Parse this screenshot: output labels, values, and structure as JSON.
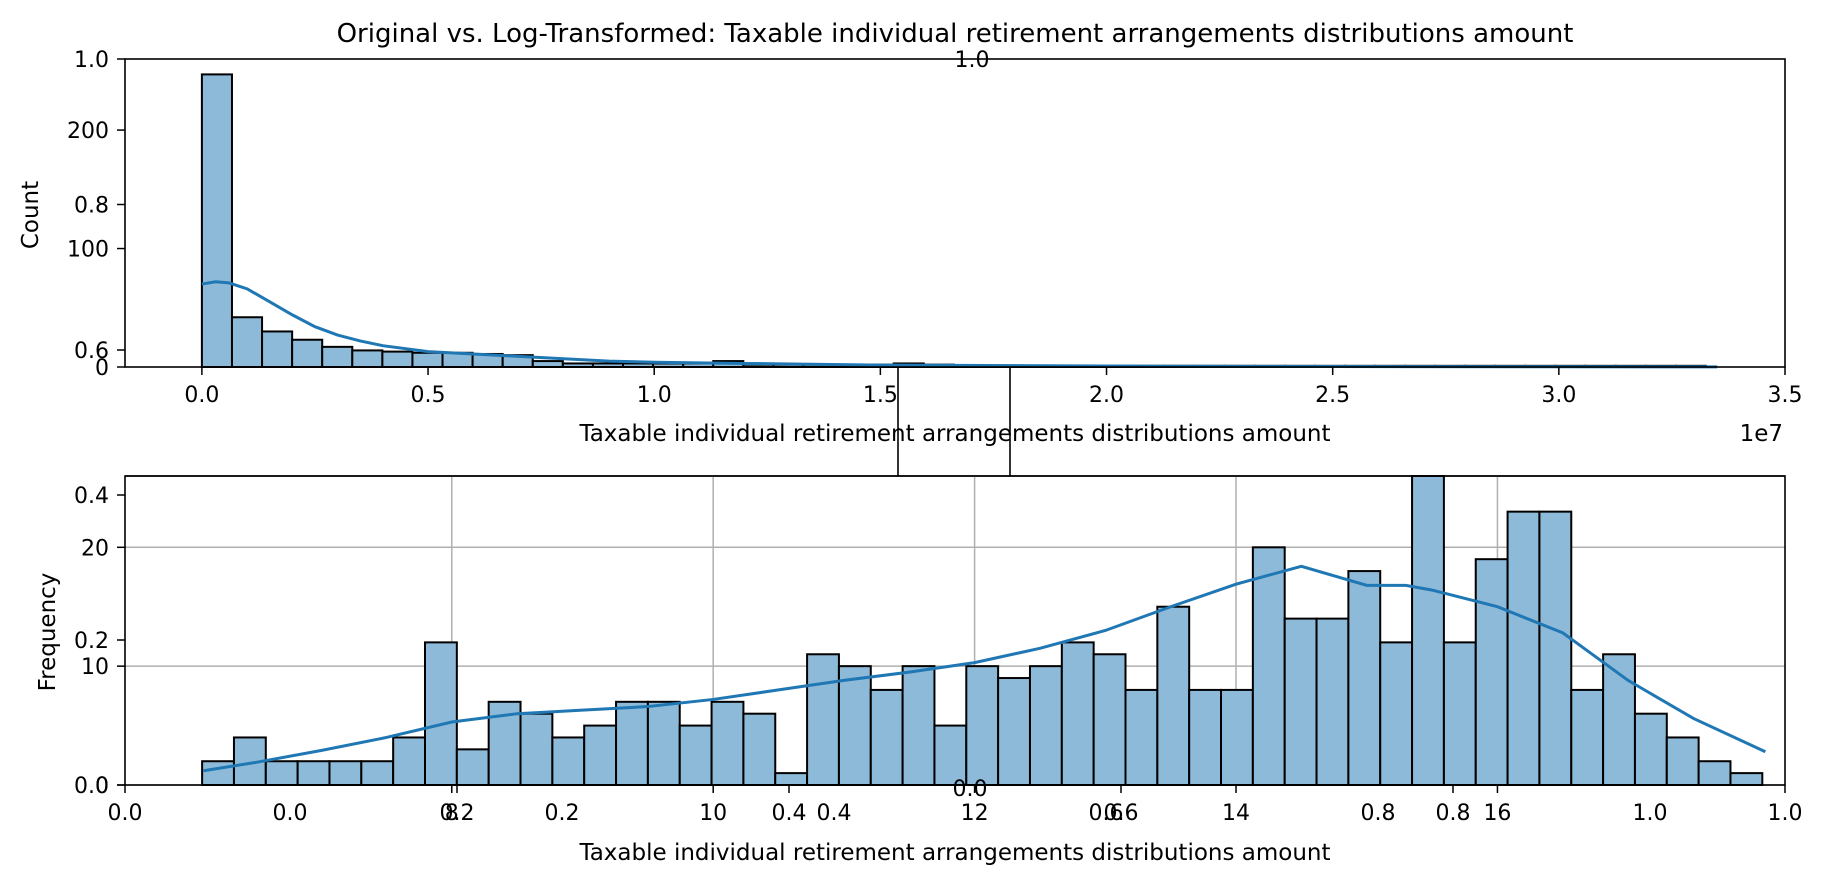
{
  "figure": {
    "title": "Original vs. Log-Transformed: Taxable individual retirement arrangements distributions amount"
  },
  "chart_data": [
    {
      "type": "bar",
      "subtype": "histogram with kde",
      "panel": "top",
      "xlabel": "Taxable individual retirement arrangements distributions amount",
      "ylabel": "Count",
      "x_offset_label": "1e7",
      "xlim": [
        -0.17,
        3.5
      ],
      "ylim": [
        0,
        260
      ],
      "xticks": [
        0.0,
        0.5,
        1.0,
        1.5,
        2.0,
        2.5,
        3.0,
        3.5
      ],
      "xtick_labels": [
        "0.0",
        "0.5",
        "1.0",
        "1.5",
        "2.0",
        "2.5",
        "3.0",
        "3.5"
      ],
      "yticks": [
        0,
        100,
        200
      ],
      "ytick_labels": [
        "0",
        "100",
        "200"
      ],
      "stray_axis": {
        "yticks": [
          0.6,
          0.8,
          1.0
        ],
        "ytick_labels": [
          "0.6",
          "0.8",
          "1.0"
        ],
        "top_label": "1.0"
      },
      "bin_start": 0.0,
      "bin_width": 0.0665,
      "values": [
        247,
        42,
        30,
        23,
        17,
        14,
        13,
        12,
        12,
        11,
        10,
        5,
        3,
        3,
        3,
        3,
        3,
        5,
        2,
        2,
        2,
        2,
        2,
        3,
        2,
        1,
        1,
        1,
        1,
        1,
        1,
        1,
        1,
        1,
        1,
        1,
        1,
        1,
        1,
        1,
        1,
        1,
        1,
        1,
        1,
        1,
        1,
        1,
        1,
        1
      ],
      "kde": {
        "x": [
          0.0,
          0.03,
          0.06,
          0.1,
          0.15,
          0.2,
          0.25,
          0.3,
          0.35,
          0.4,
          0.5,
          0.6,
          0.7,
          0.8,
          0.9,
          1.0,
          1.2,
          1.5,
          2.0,
          2.5,
          3.0,
          3.35
        ],
        "y": [
          70,
          72,
          71,
          66,
          55,
          44,
          34,
          27,
          22,
          18,
          13,
          11,
          9,
          7,
          5,
          4,
          3,
          1.6,
          0.8,
          0.4,
          0.2,
          0.1
        ]
      },
      "color": "#8ebad9",
      "line_color": "#1f77b4",
      "grid": false
    },
    {
      "type": "bar",
      "subtype": "histogram with kde",
      "panel": "bottom",
      "xlabel": "Taxable individual retirement arrangements distributions amount",
      "ylabel": "Frequency",
      "xlim": [
        5.5,
        18.2
      ],
      "ylim": [
        0,
        26
      ],
      "xticks": [
        8,
        10,
        12,
        14,
        16
      ],
      "xtick_labels": [
        "8",
        "10",
        "12",
        "14",
        "16"
      ],
      "yticks": [
        0,
        10,
        20
      ],
      "ytick_labels": [
        "0",
        "10",
        "20"
      ],
      "stray_axis": {
        "xticks": [
          0.0,
          0.2,
          0.4,
          0.6,
          0.8,
          1.0
        ],
        "xtick_labels": [
          "0.0",
          "0.2",
          "0.4",
          "0.6",
          "0.8",
          "1.0"
        ],
        "yticks": [
          0.0,
          0.2,
          0.4
        ],
        "ytick_labels": [
          "0.0",
          "0.2",
          "0.4"
        ],
        "sub_xticks": [
          0.0,
          0.2,
          0.4,
          0.6,
          0.8,
          1.0
        ],
        "sub_xtick_labels": [
          "0.0",
          "0.2",
          "0.4",
          "0.6",
          "0.8",
          "1.0"
        ],
        "mid_label": "0.0"
      },
      "bin_start": 6.09,
      "bin_width": 0.2436,
      "values": [
        2,
        4,
        2,
        2,
        2,
        2,
        4,
        12,
        3,
        7,
        6,
        4,
        5,
        7,
        7,
        5,
        7,
        6,
        1,
        11,
        10,
        8,
        10,
        5,
        10,
        9,
        10,
        12,
        11,
        8,
        15,
        8,
        8,
        20,
        14,
        14,
        18,
        12,
        26,
        12,
        19,
        23,
        23,
        8,
        11,
        6,
        4,
        2,
        1
      ],
      "kde": {
        "x": [
          6.1,
          6.5,
          7.0,
          7.5,
          8.0,
          8.5,
          9.0,
          9.5,
          10.0,
          10.5,
          11.0,
          11.5,
          12.0,
          12.5,
          13.0,
          13.5,
          14.0,
          14.5,
          15.0,
          15.3,
          15.5,
          16.0,
          16.5,
          17.0,
          17.5,
          18.05
        ],
        "y": [
          1.2,
          1.9,
          2.9,
          4.0,
          5.3,
          6.0,
          6.3,
          6.6,
          7.2,
          8.0,
          8.8,
          9.5,
          10.3,
          11.5,
          13.0,
          15.0,
          16.9,
          18.4,
          16.8,
          16.8,
          16.4,
          15.0,
          12.8,
          8.8,
          5.6,
          2.8
        ]
      },
      "color": "#8ebad9",
      "line_color": "#1f77b4",
      "grid": true
    }
  ]
}
